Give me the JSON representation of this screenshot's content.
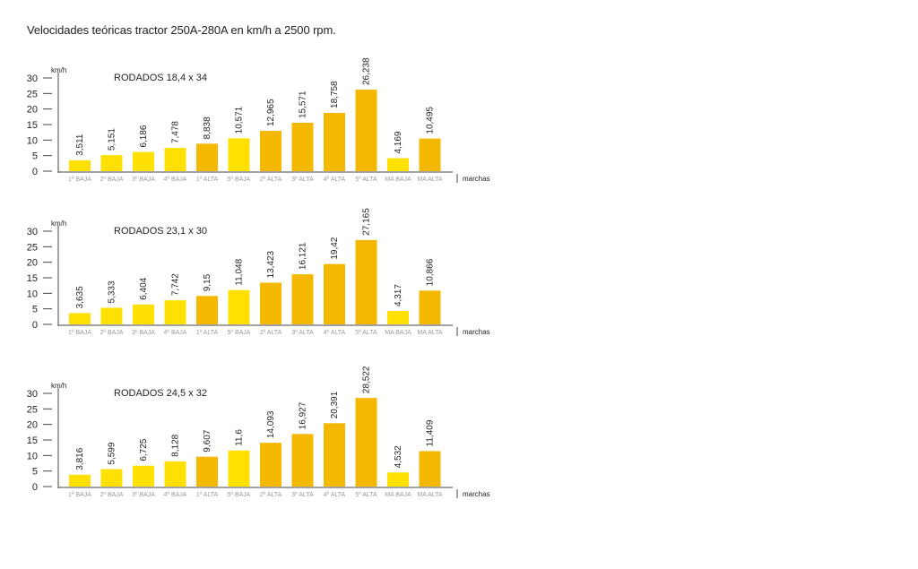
{
  "title": "Velocidades teóricas tractor 250A-280A en km/h a 2500 rpm.",
  "colors": {
    "light": "#FFE000",
    "dark": "#F5B800",
    "axis": "#444444"
  },
  "chart_data": [
    {
      "type": "bar",
      "title": "RODADOS 18,4 x 34",
      "ylabel": "km/h",
      "xlabel": "marchas",
      "ylim": [
        0,
        30
      ],
      "yticks": [
        "0",
        "5",
        "10",
        "15",
        "20",
        "25",
        "30"
      ],
      "categories": [
        "1º BAJA",
        "2º BAJA",
        "3º BAJA",
        "4º BAJA",
        "1º ALTA",
        "5º BAJA",
        "2º ALTA",
        "3º ALTA",
        "4º ALTA",
        "5º ALTA",
        "MA BAJA",
        "MA ALTA"
      ],
      "values": [
        3.511,
        5.151,
        6.186,
        7.478,
        8.838,
        10.571,
        12.965,
        15.571,
        18.758,
        26.238,
        4.169,
        10.495
      ],
      "value_labels": [
        "3,511",
        "5,151",
        "6,186",
        "7,478",
        "8,838",
        "10,571",
        "12,965",
        "15,571",
        "18,758",
        "26,238",
        "4,169",
        "10,495"
      ],
      "colors": [
        "light",
        "light",
        "light",
        "light",
        "dark",
        "light",
        "dark",
        "dark",
        "dark",
        "dark",
        "light",
        "dark"
      ]
    },
    {
      "type": "bar",
      "title": "RODADOS 23,1 x 30",
      "ylabel": "km/h",
      "xlabel": "marchas",
      "ylim": [
        0,
        30
      ],
      "yticks": [
        "0",
        "5",
        "10",
        "15",
        "20",
        "25",
        "30"
      ],
      "categories": [
        "1º BAJA",
        "2º BAJA",
        "3º BAJA",
        "4º BAJA",
        "1º ALTA",
        "5º BAJA",
        "2º ALTA",
        "3º ALTA",
        "4º ALTA",
        "5º ALTA",
        "MA BAJA",
        "MA ALTA"
      ],
      "values": [
        3.635,
        5.333,
        6.404,
        7.742,
        9.15,
        11.048,
        13.423,
        16.121,
        19.42,
        27.165,
        4.317,
        10.866
      ],
      "value_labels": [
        "3,635",
        "5,333",
        "6,404",
        "7,742",
        "9,15",
        "11,048",
        "13,423",
        "16,121",
        "19,42",
        "27,165",
        "4,317",
        "10,866"
      ],
      "colors": [
        "light",
        "light",
        "light",
        "light",
        "dark",
        "light",
        "dark",
        "dark",
        "dark",
        "dark",
        "light",
        "dark"
      ]
    },
    {
      "type": "bar",
      "title": "RODADOS 24,5 x 32",
      "ylabel": "km/h",
      "xlabel": "marchas",
      "ylim": [
        0,
        30
      ],
      "yticks": [
        "0",
        "5",
        "10",
        "15",
        "20",
        "25",
        "30"
      ],
      "categories": [
        "1º BAJA",
        "2º BAJA",
        "3º BAJA",
        "4º BAJA",
        "1º ALTA",
        "5º BAJA",
        "2º ALTA",
        "3º ALTA",
        "4º ALTA",
        "5º ALTA",
        "MA BAJA",
        "MA ALTA"
      ],
      "values": [
        3.816,
        5.599,
        6.725,
        8.128,
        9.607,
        11.6,
        14.093,
        16.927,
        20.391,
        28.522,
        4.532,
        11.409
      ],
      "value_labels": [
        "3,816",
        "5,599",
        "6,725",
        "8,128",
        "9,607",
        "11,6",
        "14,093",
        "16,927",
        "20,391",
        "28,522",
        "4,532",
        "11,409"
      ],
      "colors": [
        "light",
        "light",
        "light",
        "light",
        "dark",
        "light",
        "dark",
        "dark",
        "dark",
        "dark",
        "light",
        "dark"
      ]
    }
  ]
}
